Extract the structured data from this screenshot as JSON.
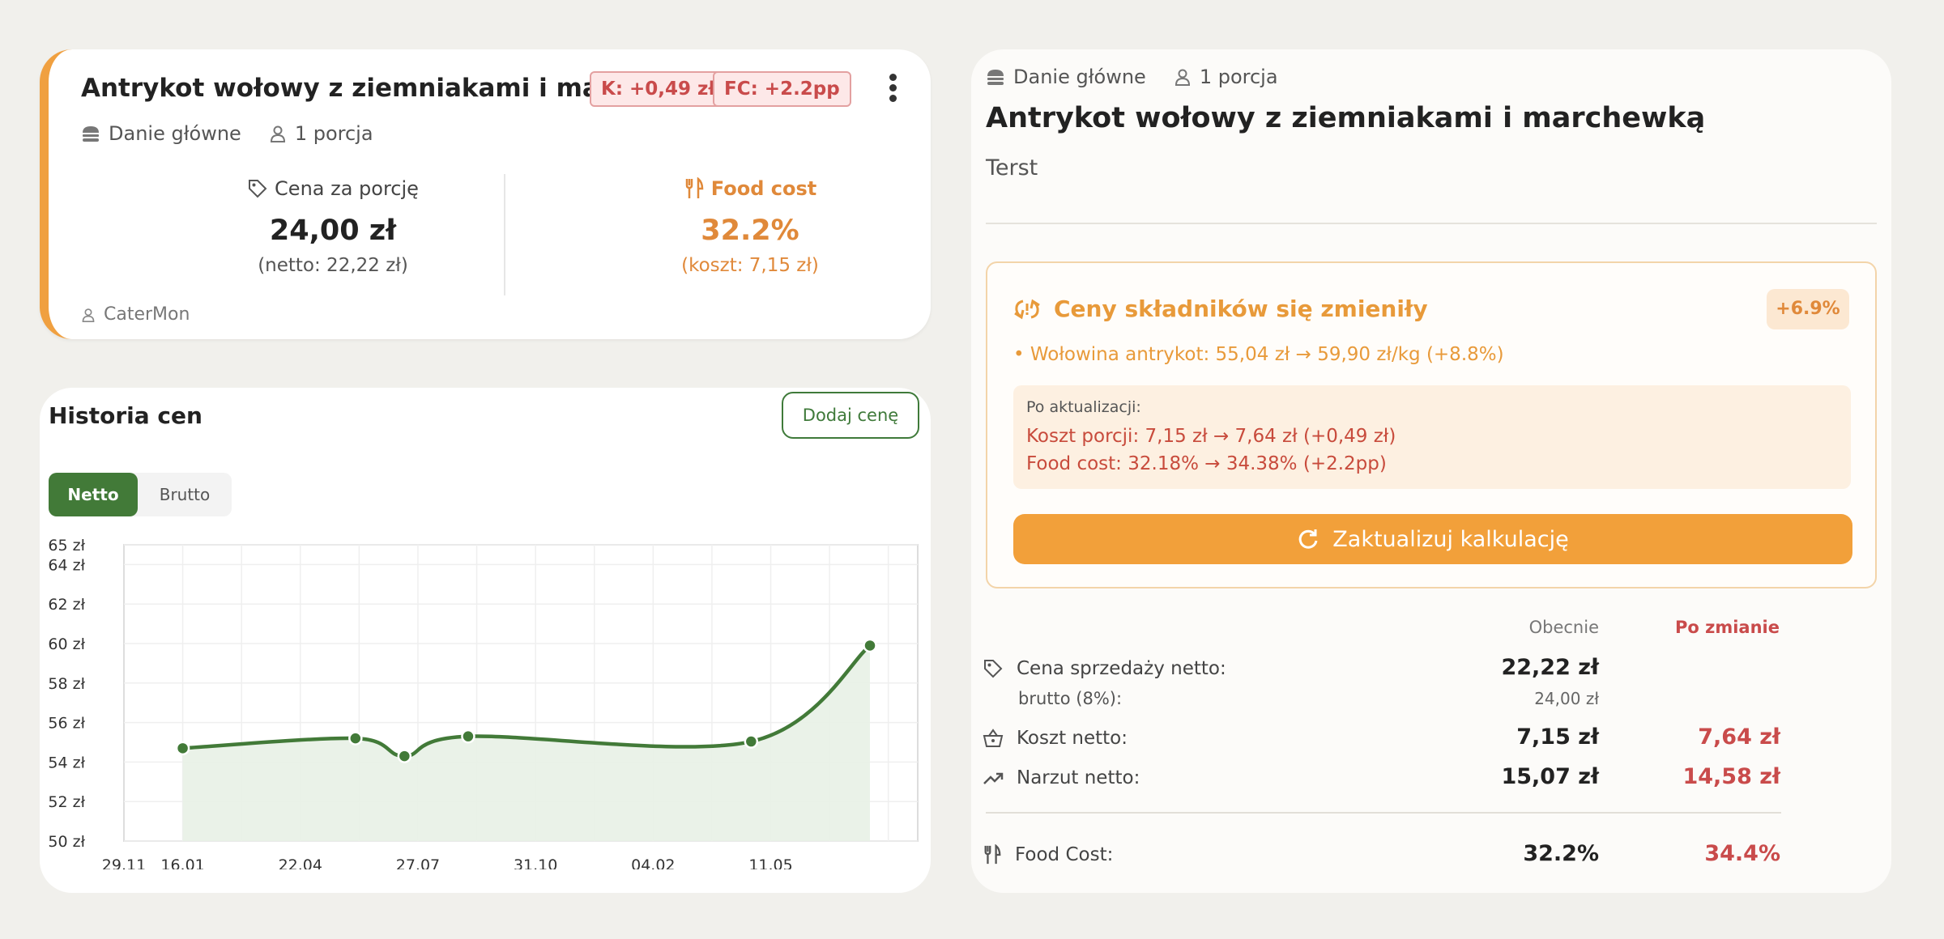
{
  "recipe_card": {
    "title": "Antrykot wołowy z ziemniakami i marchewką",
    "chip_cost": "K: +0,49 zł",
    "chip_fc": "FC: +2.2pp",
    "category": "Danie główne",
    "portions": "1 porcja",
    "price_label": "Cena za porcję",
    "price_value": "24,00 zł",
    "price_net": "(netto: 22,22 zł)",
    "fc_label": "Food cost",
    "fc_value": "32.2%",
    "fc_cost": "(koszt: 7,15 zł)",
    "author": "CaterMon",
    "accent": "#f0a040"
  },
  "history": {
    "title": "Historia cen",
    "add_button": "Dodaj cenę",
    "toggle_net": "Netto",
    "toggle_gross": "Brutto",
    "selected": "Netto",
    "accent": "#427a38"
  },
  "chart_data": {
    "type": "line",
    "x": [
      "16.01",
      "05.06",
      "16.07",
      "06.09",
      "26.01",
      "11.05"
    ],
    "x_days": [
      48,
      189,
      229,
      281,
      512,
      609
    ],
    "values": [
      54.7,
      55.2,
      54.3,
      55.3,
      55.04,
      59.9
    ],
    "x_tick_labels": [
      "29.11",
      "16.01",
      "22.04",
      "27.07",
      "31.10",
      "04.02",
      "11.05"
    ],
    "x_tick_days": [
      0,
      48,
      144,
      240,
      336,
      432,
      528
    ],
    "y_tick_labels": [
      "50 zł",
      "52 zł",
      "54 zł",
      "56 zł",
      "58 zł",
      "60 zł",
      "62 zł",
      "64 zł",
      "65 zł"
    ],
    "y_tick_values": [
      50,
      52,
      54,
      56,
      58,
      60,
      62,
      64,
      65
    ],
    "ylim": [
      50,
      65
    ],
    "fill": true,
    "grid": true,
    "line_color": "#427a38",
    "fill_color": "#e8f1e5"
  },
  "detail": {
    "category": "Danie główne",
    "portions": "1 porcja",
    "title": "Antrykot wołowy z ziemniakami i marchewką",
    "description": "Terst",
    "alert": {
      "title": "Ceny składników się zmieniły",
      "badge": "+6.9%",
      "ingredient_line": "• Wołowina antrykot: 55,04 zł → 59,90 zł/kg (+8.8%)",
      "after_caption": "Po aktualizacji:",
      "cost_line": "Koszt porcji: 7,15 zł → 7,64 zł (+0,49 zł)",
      "fc_line": "Food cost: 32.18% → 34.38% (+2.2pp)",
      "button": "Zaktualizuj kalkulację"
    },
    "compare": {
      "head_now": "Obecnie",
      "head_after": "Po zmianie",
      "sale_label": "Cena sprzedaży netto:",
      "sale_now": "22,22 zł",
      "gross_label": "brutto (8%):",
      "gross_now": "24,00 zł",
      "cost_label": "Koszt netto:",
      "cost_now": "7,15 zł",
      "cost_after": "7,64 zł",
      "markup_label": "Narzut netto:",
      "markup_now": "15,07 zł",
      "markup_after": "14,58 zł",
      "fc_label": "Food Cost:",
      "fc_now": "32.2%",
      "fc_after": "34.4%"
    }
  }
}
